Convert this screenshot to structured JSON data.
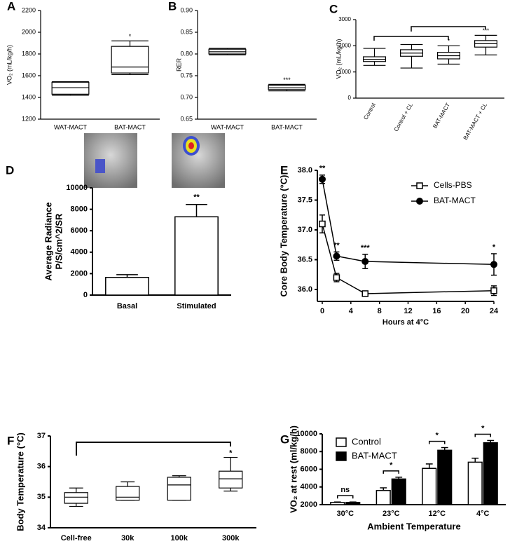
{
  "chart_data": [
    {
      "type": "box",
      "panel": "A",
      "ylabel": "VO₂ (mL/kg/h)",
      "categories": [
        "WAT-MACT",
        "BAT-MACT"
      ],
      "boxes": [
        {
          "min": 1420,
          "q1": 1430,
          "median": 1490,
          "q3": 1540,
          "max": 1545
        },
        {
          "min": 1610,
          "q1": 1625,
          "median": 1680,
          "q3": 1870,
          "max": 1920
        }
      ],
      "ylim": [
        1200,
        2200
      ],
      "yticks": [
        1200,
        1400,
        1600,
        1800,
        2000,
        2200
      ],
      "annotations": [
        "*"
      ],
      "color": "#ffffff"
    },
    {
      "type": "box",
      "panel": "B",
      "ylabel": "RER",
      "categories": [
        "WAT-MACT",
        "BAT-MACT"
      ],
      "boxes": [
        {
          "min": 0.798,
          "q1": 0.8,
          "median": 0.805,
          "q3": 0.811,
          "max": 0.813
        },
        {
          "min": 0.715,
          "q1": 0.718,
          "median": 0.722,
          "q3": 0.728,
          "max": 0.73
        }
      ],
      "ylim": [
        0.65,
        0.9
      ],
      "yticks": [
        0.65,
        {
          "value": 0.7,
          "label": "0.70"
        },
        0.75,
        {
          "value": 0.8,
          "label": "0.80"
        },
        0.85,
        {
          "value": 0.9,
          "label": "0.90"
        }
      ],
      "annotations": [
        "***"
      ],
      "color": "#ffffff"
    },
    {
      "type": "box",
      "panel": "C",
      "ylabel": "VO₂ (mL/kg/h)",
      "categories": [
        "Control",
        "Control + CL",
        "BAT-MACT",
        "BAT-MACT + CL"
      ],
      "boxes": [
        {
          "min": 1250,
          "q1": 1400,
          "median": 1480,
          "q3": 1580,
          "max": 1900
        },
        {
          "min": 1150,
          "q1": 1600,
          "median": 1720,
          "q3": 1850,
          "max": 2050
        },
        {
          "min": 1300,
          "q1": 1500,
          "median": 1620,
          "q3": 1750,
          "max": 2000
        },
        {
          "min": 1650,
          "q1": 1950,
          "median": 2080,
          "q3": 2200,
          "max": 2400
        }
      ],
      "ylim": [
        0,
        3000
      ],
      "yticks": [
        0,
        1000,
        2000,
        3000
      ],
      "annotations": [
        "*",
        "***"
      ],
      "color": "#ffffff"
    },
    {
      "type": "bar",
      "panel": "D",
      "ylabel": [
        "Average  Radiance",
        "P/S/cm^2/SR"
      ],
      "categories": [
        "Basal",
        "Stimulated"
      ],
      "values": [
        1650,
        7300
      ],
      "errors": [
        250,
        1150
      ],
      "color": "#ffffff",
      "ylim": [
        0,
        10000
      ],
      "yticks": [
        0,
        2000,
        4000,
        6000,
        8000,
        10000
      ],
      "annotations": [
        "**"
      ]
    },
    {
      "type": "line",
      "panel": "E",
      "xlabel": "Hours at 4°C",
      "ylabel": "Core Body Temperature (°C)",
      "x": [
        0,
        2,
        6,
        24
      ],
      "series": [
        {
          "name": "Cells-PBS",
          "color": "#000000",
          "marker": "square",
          "values": [
            37.1,
            36.2,
            35.93,
            35.98
          ],
          "errors": [
            0.15,
            0.07,
            0.04,
            0.08
          ]
        },
        {
          "name": "BAT-MACT",
          "color": "#000000",
          "marker": "circle",
          "values": [
            37.85,
            36.56,
            36.47,
            36.42
          ],
          "errors": [
            0.07,
            0.07,
            0.12,
            0.18
          ]
        }
      ],
      "xlim": [
        0,
        24
      ],
      "xticks": [
        0,
        4,
        8,
        12,
        16,
        20,
        24
      ],
      "ylim": [
        35.8,
        38
      ],
      "yticks": [
        {
          "value": 36,
          "label": "36.0"
        },
        36.5,
        {
          "value": 37,
          "label": "37.0"
        },
        37.5,
        {
          "value": 38,
          "label": "38.0"
        }
      ],
      "annotations": [
        "**",
        "**",
        "***",
        "*"
      ],
      "legend": "upper right"
    },
    {
      "type": "box",
      "panel": "F",
      "ylabel": "Body Temperature (°C)",
      "categories": [
        "Cell-free",
        "30k",
        "100k",
        "300k"
      ],
      "boxes": [
        {
          "min": 34.7,
          "q1": 34.8,
          "median": 35.0,
          "q3": 35.15,
          "max": 35.3
        },
        {
          "min": 34.9,
          "q1": 34.9,
          "median": 35.0,
          "q3": 35.35,
          "max": 35.5
        },
        {
          "min": 34.9,
          "q1": 34.9,
          "median": 35.4,
          "q3": 35.65,
          "max": 35.7
        },
        {
          "min": 35.2,
          "q1": 35.3,
          "median": 35.6,
          "q3": 35.85,
          "max": 36.3
        }
      ],
      "ylim": [
        34,
        37
      ],
      "yticks": [
        34,
        35,
        36,
        37
      ],
      "annotations": [
        "*"
      ],
      "color": "#ffffff"
    },
    {
      "type": "bar",
      "panel": "G",
      "xlabel": "Ambient Temperature",
      "ylabel": "VO₂ at rest (ml/kg/h)",
      "categories": [
        "30°C",
        "23°C",
        "12°C",
        "4°C"
      ],
      "series": [
        {
          "name": "Control",
          "color": "#ffffff",
          "values": [
            2250,
            3600,
            6100,
            6800
          ],
          "errors": [
            50,
            300,
            500,
            450
          ]
        },
        {
          "name": "BAT-MACT",
          "color": "#000000",
          "values": [
            2250,
            4900,
            8150,
            9000
          ],
          "errors": [
            50,
            200,
            300,
            250
          ]
        }
      ],
      "ylim": [
        2000,
        10000
      ],
      "yticks": [
        2000,
        4000,
        6000,
        8000,
        10000
      ],
      "annotations": [
        "ns",
        "*",
        "*",
        "*"
      ],
      "legend": "upper left"
    }
  ]
}
